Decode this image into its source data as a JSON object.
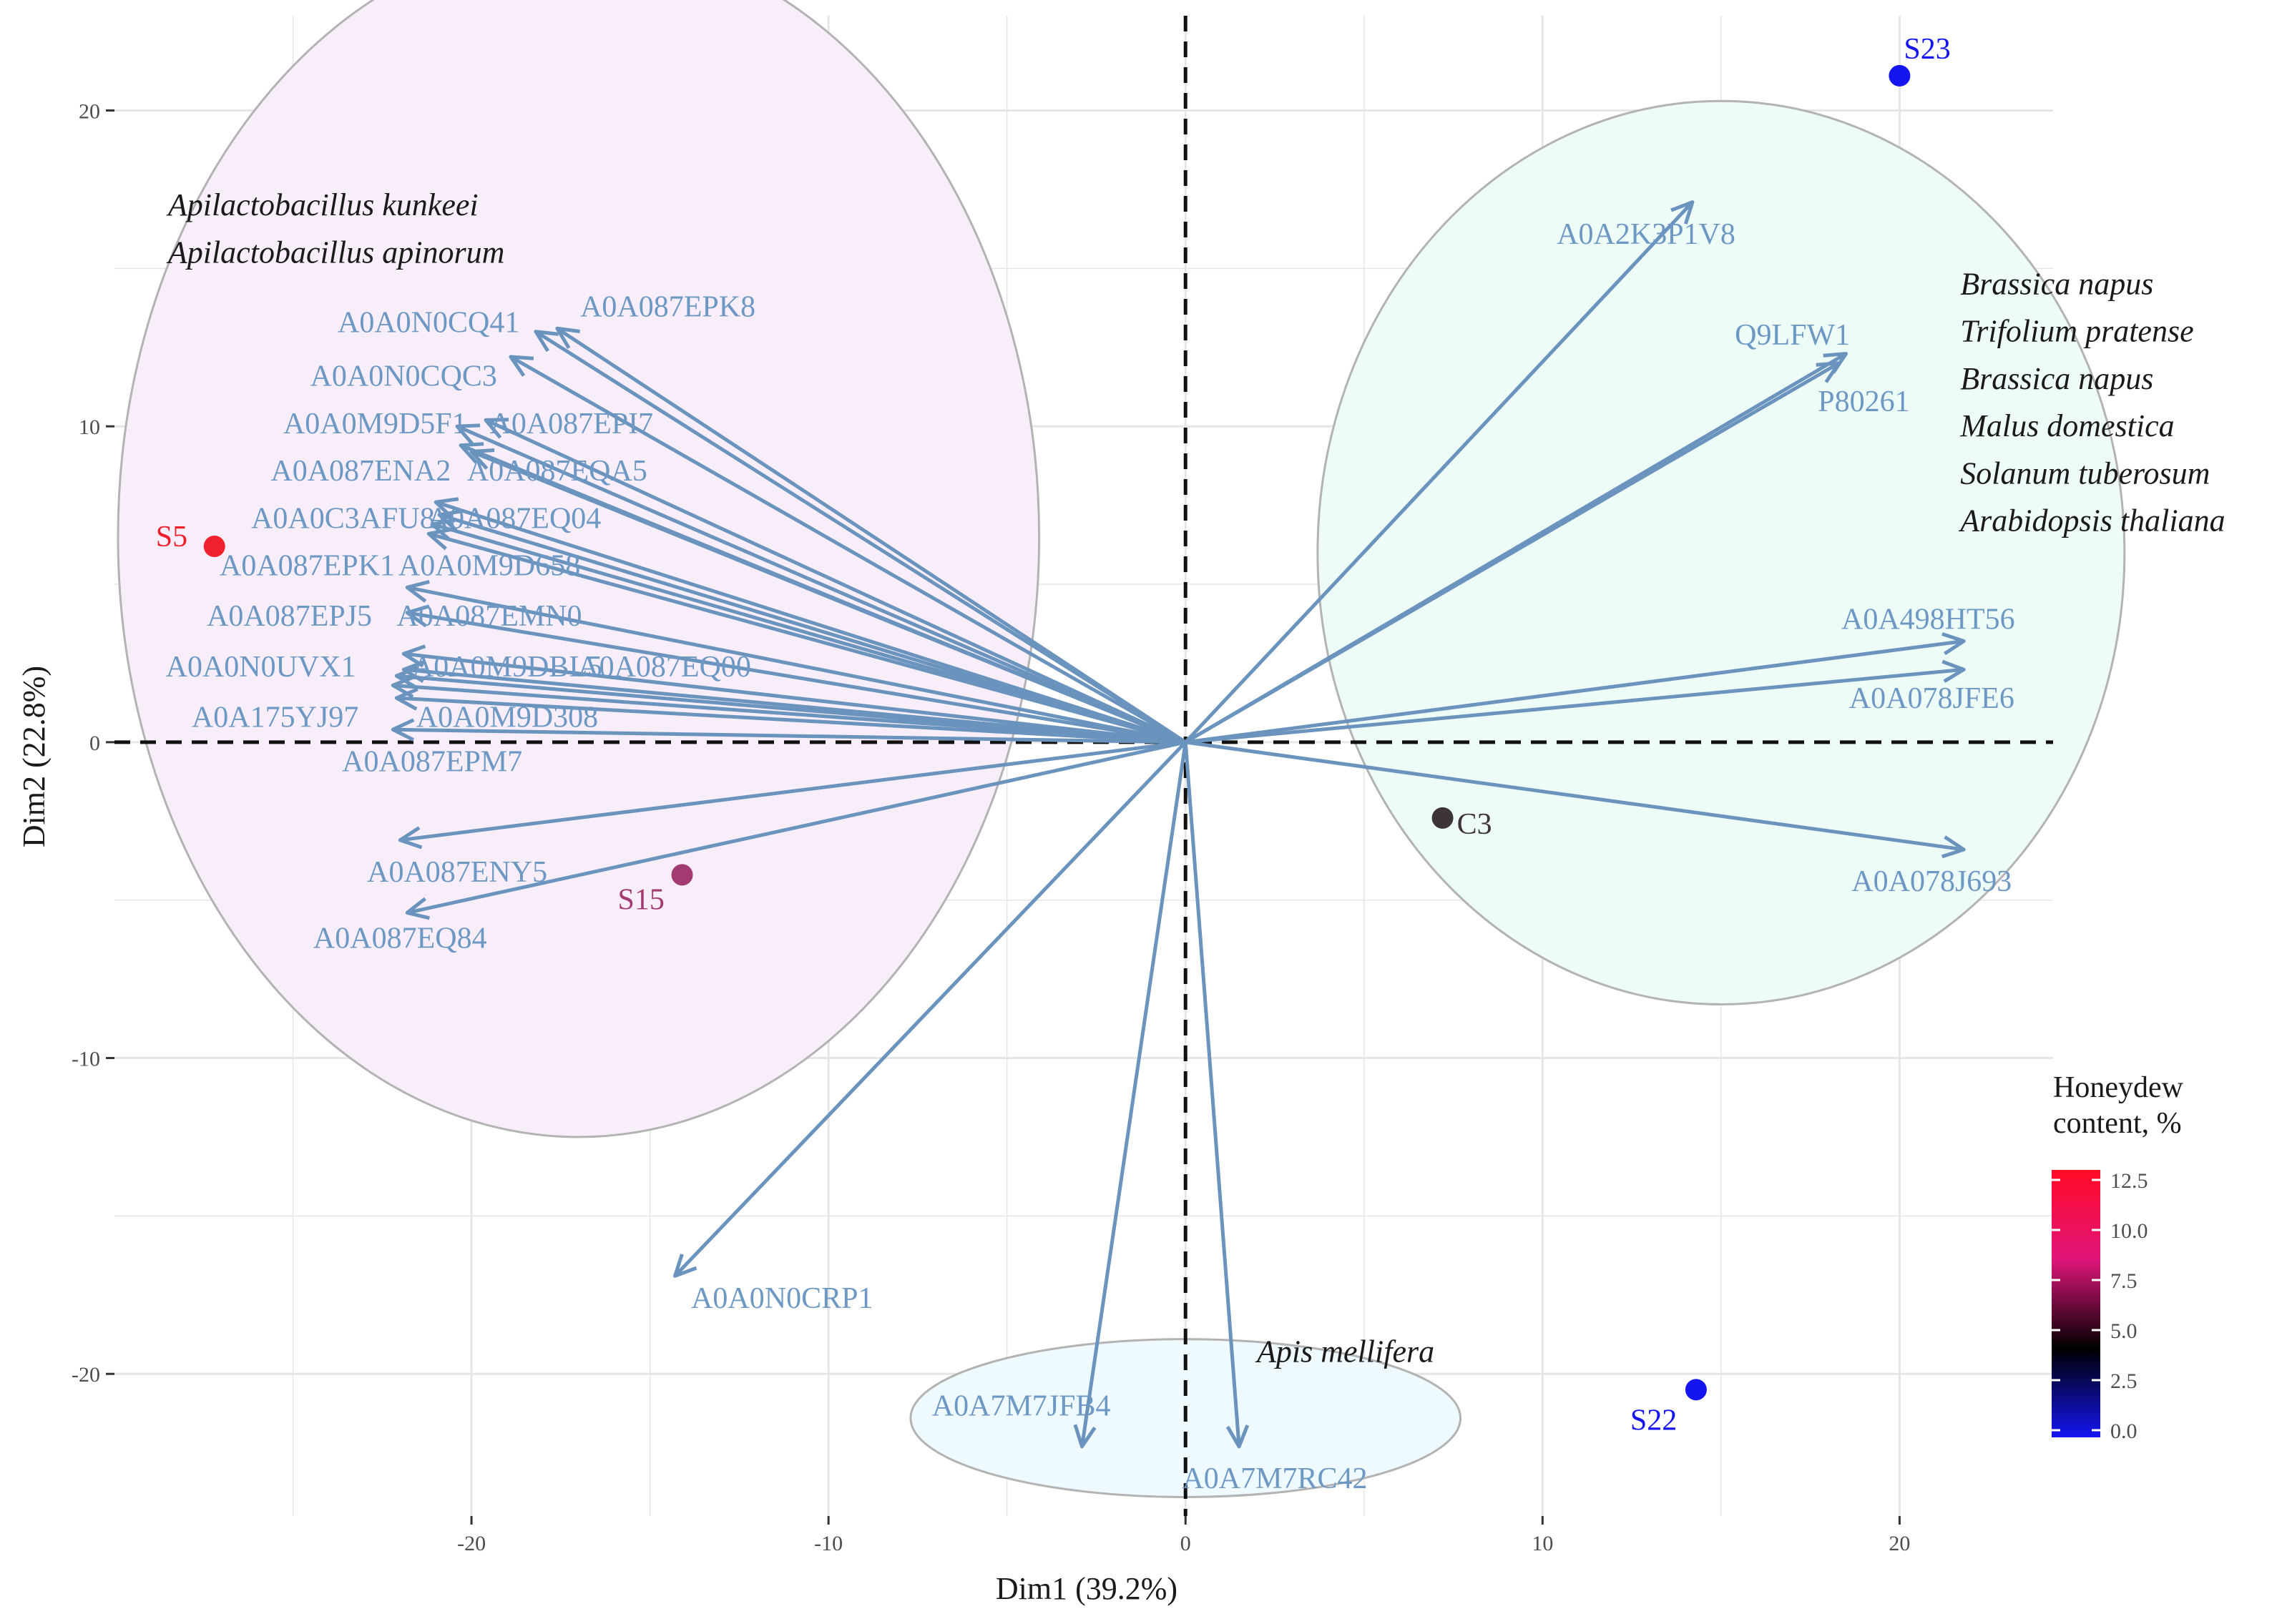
{
  "chart_data": {
    "type": "scatter",
    "subtype": "pca-biplot",
    "title": "",
    "xlabel": "Dim1 (39.2%)",
    "ylabel": "Dim2 (22.8%)",
    "xlim": [
      -30,
      24.3
    ],
    "ylim": [
      -24.5,
      23
    ],
    "x_ticks": [
      -20,
      -10,
      0,
      10,
      20
    ],
    "y_ticks": [
      -20,
      -10,
      0,
      10,
      20
    ],
    "x_tick_labels": [
      "-20",
      "-10",
      "0",
      "10",
      "20"
    ],
    "y_tick_labels": [
      "-20",
      "-10",
      "0",
      "10",
      "20"
    ],
    "grid": true,
    "zero_lines": "dashed",
    "samples": [
      {
        "label": "S5",
        "x": -27.2,
        "y": 6.2,
        "honeydew": 12.5,
        "color": "#f0202e"
      },
      {
        "label": "S15",
        "x": -14.1,
        "y": -4.2,
        "honeydew": 7.2,
        "color": "#a33b72"
      },
      {
        "label": "C3",
        "x": 7.2,
        "y": -2.4,
        "honeydew": 4.8,
        "color": "#3c3438"
      },
      {
        "label": "S23",
        "x": 20.0,
        "y": 21.1,
        "honeydew": 0.0,
        "color": "#1515f2"
      },
      {
        "label": "S22",
        "x": 14.3,
        "y": -20.5,
        "honeydew": 0.0,
        "color": "#1515f2"
      }
    ],
    "variables": [
      {
        "label": "A0A087EPK8",
        "x": -17.6,
        "y": 13.1,
        "lx": -14.5,
        "ly": 13.8
      },
      {
        "label": "A0A0N0CQ41",
        "x": -18.2,
        "y": 13.0,
        "lx": -21.2,
        "ly": 13.3
      },
      {
        "label": "A0A0N0CQC3",
        "x": -18.9,
        "y": 12.2,
        "lx": -21.9,
        "ly": 11.6
      },
      {
        "label": "A0A0M9D5F1",
        "x": -20.4,
        "y": 10.0,
        "lx": -22.7,
        "ly": 10.1
      },
      {
        "label": "A0A087EPI7",
        "x": -19.6,
        "y": 10.2,
        "lx": -17.2,
        "ly": 10.1
      },
      {
        "label": "A0A087ENA2",
        "x": -20.3,
        "y": 9.4,
        "lx": -23.1,
        "ly": 8.6
      },
      {
        "label": "A0A087EQA5",
        "x": -20.0,
        "y": 9.2,
        "lx": -17.6,
        "ly": 8.6
      },
      {
        "label": "A0A0C3AFU8",
        "x": -21.0,
        "y": 7.6,
        "lx": -23.6,
        "ly": 7.1
      },
      {
        "label": "A0A087EQ04",
        "x": -20.9,
        "y": 7.2,
        "lx": -18.8,
        "ly": 7.1
      },
      {
        "label": "A0A087EPK1",
        "x": -21.1,
        "y": 6.9,
        "lx": -24.6,
        "ly": 5.6
      },
      {
        "label": "A0A0M9D658",
        "x": -21.2,
        "y": 6.6,
        "lx": -19.5,
        "ly": 5.6
      },
      {
        "label": "A0A087EPJ5",
        "x": -21.8,
        "y": 4.9,
        "lx": -25.1,
        "ly": 4.0
      },
      {
        "label": "A0A087EMN0",
        "x": -21.8,
        "y": 4.1,
        "lx": -19.5,
        "ly": 4.0
      },
      {
        "label": "A0A0N0UVX1",
        "x": -21.9,
        "y": 2.8,
        "lx": -25.9,
        "ly": 2.4
      },
      {
        "label": "A0A0M9DBL5",
        "x": -21.9,
        "y": 2.3,
        "lx": -19.0,
        "ly": 2.4
      },
      {
        "label": "A0A087EQ00",
        "x": -22.1,
        "y": 2.1,
        "lx": -14.6,
        "ly": 2.4
      },
      {
        "label": "A0A175YJ97",
        "x": -22.2,
        "y": 1.8,
        "lx": -25.5,
        "ly": 0.8
      },
      {
        "label": "A0A0M9D308",
        "x": -22.1,
        "y": 1.4,
        "lx": -19.0,
        "ly": 0.8
      },
      {
        "label": "A0A087EPM7",
        "x": -22.2,
        "y": 0.4,
        "lx": -21.1,
        "ly": -0.6
      },
      {
        "label": "A0A087ENY5",
        "x": -22.0,
        "y": -3.1,
        "lx": -20.4,
        "ly": -4.1
      },
      {
        "label": "A0A087EQ84",
        "x": -21.8,
        "y": -5.4,
        "lx": -22.0,
        "ly": -6.2
      },
      {
        "label": "A0A0N0CRP1",
        "x": -14.3,
        "y": -16.9,
        "lx": -11.3,
        "ly": -17.6
      },
      {
        "label": "A0A2K3P1V8",
        "x": 14.2,
        "y": 17.1,
        "lx": 12.9,
        "ly": 16.1
      },
      {
        "label": "Q9LFW1",
        "x": 18.5,
        "y": 12.3,
        "lx": 17.0,
        "ly": 12.9
      },
      {
        "label": "P80261",
        "x": 18.3,
        "y": 12.0,
        "lx": 19.0,
        "ly": 10.8
      },
      {
        "label": "A0A498HT56",
        "x": 21.8,
        "y": 3.2,
        "lx": 20.8,
        "ly": 3.9
      },
      {
        "label": "A0A078JFE6",
        "x": 21.8,
        "y": 2.3,
        "lx": 20.9,
        "ly": 1.4
      },
      {
        "label": "A0A078J693",
        "x": 21.8,
        "y": -3.4,
        "lx": 20.9,
        "ly": -4.4
      },
      {
        "label": "A0A7M7JFB4",
        "x": -2.9,
        "y": -22.3,
        "lx": -4.6,
        "ly": -21.0
      },
      {
        "label": "A0A7M7RC42",
        "x": 1.5,
        "y": -22.3,
        "lx": 2.5,
        "ly": -23.3
      }
    ],
    "ellipses": [
      {
        "cx": -17.0,
        "cy": 6.5,
        "rx": 12.9,
        "ry": 19.0,
        "fill": "#f7eef9"
      },
      {
        "cx": 15.0,
        "cy": 6.0,
        "rx": 11.3,
        "ry": 14.3,
        "fill": "#eefcf8"
      },
      {
        "cx": 0.0,
        "cy": -21.4,
        "rx": 7.7,
        "ry": 2.5,
        "fill": "#eefaff"
      }
    ],
    "annotations": [
      {
        "text": "Apilactobacillus kunkeei",
        "x": -28.5,
        "y": 17.0,
        "anchor": "start"
      },
      {
        "text": "Apilactobacillus apinorum",
        "x": -28.5,
        "y": 15.5,
        "anchor": "start"
      },
      {
        "text": "Brassica napus",
        "x": 21.7,
        "y": 14.5,
        "anchor": "start"
      },
      {
        "text": "Trifolium pratense",
        "x": 21.7,
        "y": 13.0,
        "anchor": "start"
      },
      {
        "text": "Brassica napus",
        "x": 21.7,
        "y": 11.5,
        "anchor": "start"
      },
      {
        "text": "Malus domestica",
        "x": 21.7,
        "y": 10.0,
        "anchor": "start"
      },
      {
        "text": "Solanum tuberosum",
        "x": 21.7,
        "y": 8.5,
        "anchor": "start"
      },
      {
        "text": "Arabidopsis thaliana",
        "x": 21.7,
        "y": 7.0,
        "anchor": "start"
      },
      {
        "text": "Apis mellifera",
        "x": 2.0,
        "y": -19.3,
        "anchor": "start"
      }
    ],
    "legend": {
      "title_line1": "Honeydew",
      "title_line2": "content, %",
      "position": "bottom-right",
      "range": [
        0,
        12.5
      ],
      "ticks": [
        12.5,
        10.0,
        7.5,
        5.0,
        2.5,
        0.0
      ],
      "tick_labels": [
        "12.5",
        "10.0",
        "7.5",
        "5.0",
        "2.5",
        "0.0"
      ],
      "gradient_colors": [
        "#1515f2",
        "#000000",
        "#e0157a",
        "#ff0a25"
      ]
    },
    "colors": {
      "arrow": "#6a93bd",
      "arrow_label": "#6d98c4",
      "grid": "#e6e6e6",
      "ellipse_stroke": "#b3b3b3"
    }
  }
}
